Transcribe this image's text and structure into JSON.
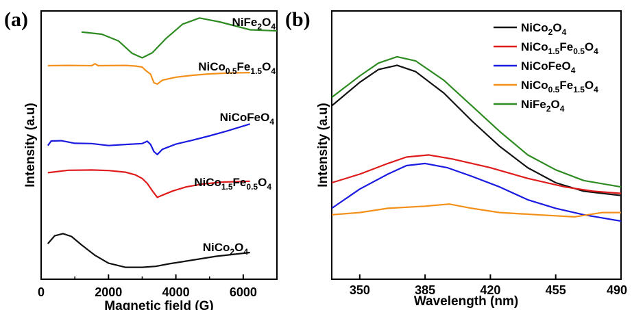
{
  "chart_data": [
    {
      "panel": "(a)",
      "type": "line",
      "xlabel": "Magnetic field (G)",
      "ylabel": "Intensity (a.u)",
      "xlim": [
        0,
        7000
      ],
      "xticks": [
        0,
        2000,
        4000,
        6000
      ],
      "y_ticks_shown": false,
      "series": [
        {
          "name": "NiFe2O4",
          "name_parts": [
            [
              "NiFe",
              ""
            ],
            [
              "2",
              "sub"
            ],
            [
              "O",
              ""
            ],
            [
              "4",
              "sub"
            ]
          ],
          "color": "#2e8b22",
          "points": [
            [
              1200,
              0.82
            ],
            [
              1800,
              0.78
            ],
            [
              2300,
              0.66
            ],
            [
              2700,
              0.44
            ],
            [
              3000,
              0.36
            ],
            [
              3300,
              0.45
            ],
            [
              3700,
              0.7
            ],
            [
              4200,
              0.96
            ],
            [
              4700,
              1.07
            ],
            [
              5300,
              1.0
            ],
            [
              6200,
              0.86
            ],
            [
              7000,
              0.84
            ]
          ]
        },
        {
          "name": "NiCo0.5Fe1.5O4",
          "name_parts": [
            [
              "NiCo",
              ""
            ],
            [
              "0.5",
              "sub"
            ],
            [
              "Fe",
              ""
            ],
            [
              "1.5",
              "sub"
            ],
            [
              "O",
              ""
            ],
            [
              "4",
              "sub"
            ]
          ],
          "color": "#f39019",
          "points": [
            [
              200,
              0.52
            ],
            [
              800,
              0.53
            ],
            [
              1500,
              0.52
            ],
            [
              1600,
              0.58
            ],
            [
              1700,
              0.52
            ],
            [
              2500,
              0.53
            ],
            [
              2800,
              0.51
            ],
            [
              3000,
              0.48
            ],
            [
              3100,
              0.38
            ],
            [
              3250,
              0.26
            ],
            [
              3350,
              0.0
            ],
            [
              3450,
              -0.04
            ],
            [
              3600,
              0.08
            ],
            [
              4000,
              0.17
            ],
            [
              4500,
              0.23
            ],
            [
              5000,
              0.27
            ],
            [
              5600,
              0.3
            ],
            [
              6200,
              0.31
            ]
          ]
        },
        {
          "name": "NiCoFeO4",
          "name_parts": [
            [
              "NiCoFeO",
              ""
            ],
            [
              "4",
              "sub"
            ]
          ],
          "color": "#1a1ae0",
          "points": [
            [
              200,
              0.03
            ],
            [
              300,
              0.19
            ],
            [
              600,
              0.2
            ],
            [
              1000,
              0.11
            ],
            [
              1500,
              0.1
            ],
            [
              2000,
              0.03
            ],
            [
              2500,
              0.07
            ],
            [
              3000,
              0.1
            ],
            [
              3150,
              0.18
            ],
            [
              3250,
              0.07
            ],
            [
              3350,
              -0.18
            ],
            [
              3450,
              -0.28
            ],
            [
              3600,
              -0.1
            ],
            [
              4000,
              0.08
            ],
            [
              4500,
              0.22
            ],
            [
              5000,
              0.37
            ],
            [
              5500,
              0.53
            ],
            [
              6200,
              0.78
            ]
          ]
        },
        {
          "name": "NiCo1.5Fe0.5O4",
          "name_parts": [
            [
              "NiCo",
              ""
            ],
            [
              "1.5",
              "sub"
            ],
            [
              "Fe",
              ""
            ],
            [
              "0.5",
              "sub"
            ],
            [
              "O",
              ""
            ],
            [
              "4",
              "sub"
            ]
          ],
          "color": "#e01b1b",
          "points": [
            [
              200,
              0.44
            ],
            [
              800,
              0.53
            ],
            [
              1500,
              0.54
            ],
            [
              2000,
              0.52
            ],
            [
              2500,
              0.46
            ],
            [
              2800,
              0.36
            ],
            [
              3000,
              0.23
            ],
            [
              3150,
              0.05
            ],
            [
              3300,
              -0.22
            ],
            [
              3450,
              -0.46
            ],
            [
              3600,
              -0.38
            ],
            [
              3900,
              -0.23
            ],
            [
              4300,
              -0.08
            ],
            [
              4800,
              0.03
            ],
            [
              5400,
              0.1
            ],
            [
              6200,
              0.13
            ]
          ]
        },
        {
          "name": "NiCo2O4",
          "name_parts": [
            [
              "NiCo",
              ""
            ],
            [
              "2",
              "sub"
            ],
            [
              "O",
              ""
            ],
            [
              "4",
              "sub"
            ]
          ],
          "color": "#111111",
          "points": [
            [
              200,
              0.52
            ],
            [
              400,
              0.77
            ],
            [
              650,
              0.84
            ],
            [
              900,
              0.75
            ],
            [
              1200,
              0.48
            ],
            [
              1600,
              0.15
            ],
            [
              2000,
              -0.1
            ],
            [
              2500,
              -0.23
            ],
            [
              3000,
              -0.23
            ],
            [
              3400,
              -0.2
            ],
            [
              3800,
              -0.12
            ],
            [
              4500,
              0.0
            ],
            [
              5200,
              0.12
            ],
            [
              6200,
              0.24
            ]
          ]
        }
      ]
    },
    {
      "panel": "(b)",
      "type": "line",
      "xlabel": "Wavelength (nm)",
      "ylabel": "Intensity (a.u)",
      "xlim": [
        335,
        490
      ],
      "xticks": [
        350,
        385,
        420,
        455,
        490
      ],
      "y_ticks_shown": false,
      "legend_position": "top-right",
      "series": [
        {
          "name": "NiCo2O4",
          "name_parts": [
            [
              "NiCo",
              ""
            ],
            [
              "2",
              "sub"
            ],
            [
              "O",
              ""
            ],
            [
              "4",
              "sub"
            ]
          ],
          "color": "#111111",
          "points": [
            [
              335,
              0.78
            ],
            [
              350,
              0.89
            ],
            [
              360,
              0.95
            ],
            [
              370,
              0.97
            ],
            [
              380,
              0.94
            ],
            [
              395,
              0.84
            ],
            [
              410,
              0.71
            ],
            [
              425,
              0.59
            ],
            [
              440,
              0.49
            ],
            [
              455,
              0.42
            ],
            [
              470,
              0.38
            ],
            [
              490,
              0.36
            ]
          ]
        },
        {
          "name": "NiCo1.5Fe0.5O4",
          "name_parts": [
            [
              "NiCo",
              ""
            ],
            [
              "1.5",
              "sub"
            ],
            [
              "Fe",
              ""
            ],
            [
              "0.5",
              "sub"
            ],
            [
              "O",
              ""
            ],
            [
              "4",
              "sub"
            ]
          ],
          "color": "#e01b1b",
          "points": [
            [
              335,
              0.42
            ],
            [
              350,
              0.46
            ],
            [
              365,
              0.51
            ],
            [
              375,
              0.54
            ],
            [
              387,
              0.55
            ],
            [
              400,
              0.53
            ],
            [
              420,
              0.49
            ],
            [
              440,
              0.44
            ],
            [
              460,
              0.4
            ],
            [
              475,
              0.38
            ],
            [
              490,
              0.37
            ]
          ]
        },
        {
          "name": "NiCoFeO4",
          "name_parts": [
            [
              "NiCoFeO",
              ""
            ],
            [
              "4",
              "sub"
            ]
          ],
          "color": "#1a1ae0",
          "points": [
            [
              335,
              0.3
            ],
            [
              350,
              0.39
            ],
            [
              365,
              0.46
            ],
            [
              375,
              0.5
            ],
            [
              385,
              0.51
            ],
            [
              397,
              0.49
            ],
            [
              410,
              0.45
            ],
            [
              425,
              0.4
            ],
            [
              440,
              0.34
            ],
            [
              455,
              0.3
            ],
            [
              470,
              0.27
            ],
            [
              490,
              0.24
            ]
          ]
        },
        {
          "name": "NiCo0.5Fe1.5O4",
          "name_parts": [
            [
              "NiCo",
              ""
            ],
            [
              "0.5",
              "sub"
            ],
            [
              "Fe",
              ""
            ],
            [
              "1.5",
              "sub"
            ],
            [
              "O",
              ""
            ],
            [
              "4",
              "sub"
            ]
          ],
          "color": "#f39019",
          "points": [
            [
              335,
              0.27
            ],
            [
              350,
              0.28
            ],
            [
              365,
              0.3
            ],
            [
              385,
              0.31
            ],
            [
              398,
              0.32
            ],
            [
              410,
              0.3
            ],
            [
              425,
              0.28
            ],
            [
              445,
              0.27
            ],
            [
              465,
              0.26
            ],
            [
              480,
              0.28
            ],
            [
              490,
              0.28
            ]
          ]
        },
        {
          "name": "NiFe2O4",
          "name_parts": [
            [
              "NiFe",
              ""
            ],
            [
              "2",
              "sub"
            ],
            [
              "O",
              ""
            ],
            [
              "4",
              "sub"
            ]
          ],
          "color": "#2e8b22",
          "points": [
            [
              335,
              0.82
            ],
            [
              350,
              0.92
            ],
            [
              360,
              0.98
            ],
            [
              370,
              1.01
            ],
            [
              380,
              0.99
            ],
            [
              395,
              0.9
            ],
            [
              410,
              0.78
            ],
            [
              425,
              0.66
            ],
            [
              440,
              0.55
            ],
            [
              455,
              0.48
            ],
            [
              470,
              0.43
            ],
            [
              490,
              0.4
            ]
          ]
        }
      ]
    }
  ]
}
